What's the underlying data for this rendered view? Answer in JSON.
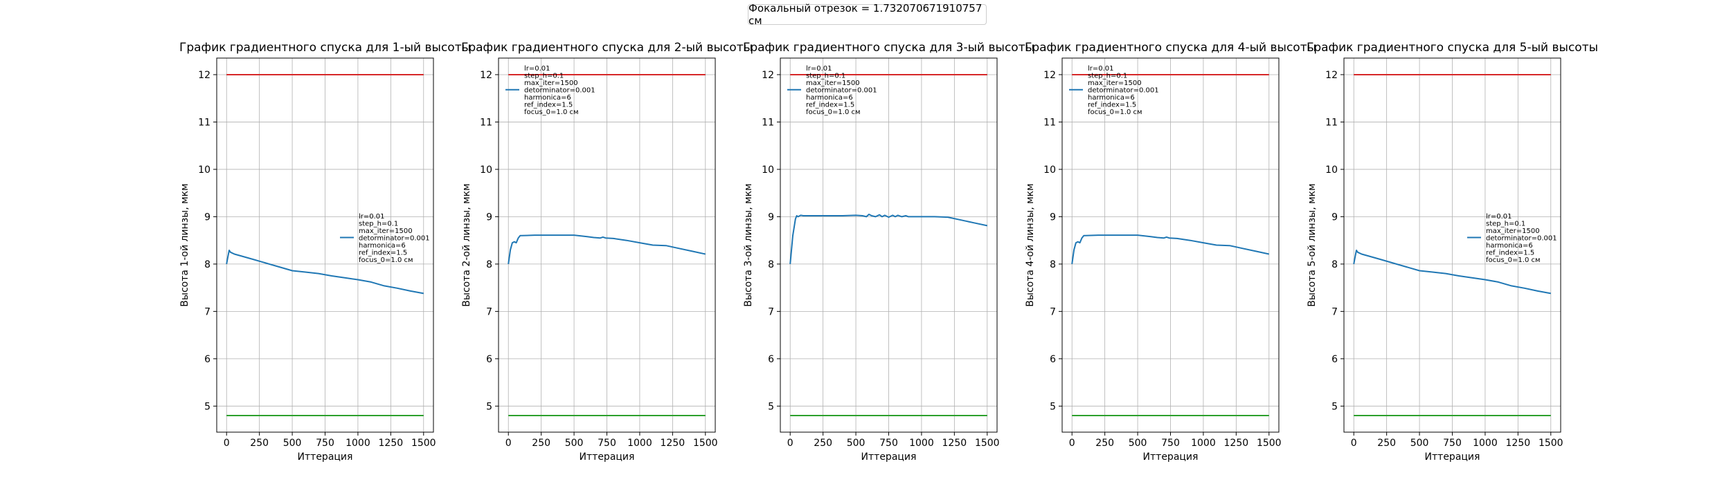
{
  "figure": {
    "suptitle": "Фокальный отрезок = 1.732070671910757 см"
  },
  "chart_data": [
    {
      "type": "line",
      "title": "График градиентного спуска для 1-ый высоты",
      "xlabel": "Иттерация",
      "ylabel": "Высота 1-ой линзы, мкм",
      "xlim": [
        -75,
        1575
      ],
      "ylim": [
        4.45,
        12.35
      ],
      "xticks": [
        0,
        250,
        500,
        750,
        1000,
        1250,
        1500
      ],
      "yticks": [
        5,
        6,
        7,
        8,
        9,
        10,
        11,
        12
      ],
      "grid": true,
      "legend_loc": "center-right",
      "legend_lines": [
        "lr=0.01",
        "step_h=0.1",
        "max_iter=1500",
        "detorminator=0.001",
        "harmonica=6",
        "ref_index=1.5",
        "focus_0=1.0 см"
      ],
      "series": [
        {
          "color": "#1f77b4",
          "x": [
            0,
            10,
            20,
            30,
            60,
            100,
            200,
            300,
            400,
            500,
            600,
            700,
            800,
            900,
            1000,
            1100,
            1200,
            1300,
            1400,
            1500
          ],
          "y": [
            8.0,
            8.15,
            8.29,
            8.25,
            8.21,
            8.18,
            8.1,
            8.02,
            7.94,
            7.86,
            7.83,
            7.8,
            7.75,
            7.71,
            7.67,
            7.62,
            7.54,
            7.49,
            7.43,
            7.38
          ]
        },
        {
          "color": "#d62728",
          "x": [
            0,
            1500
          ],
          "y": [
            12.0,
            12.0
          ]
        },
        {
          "color": "#2ca02c",
          "x": [
            0,
            1500
          ],
          "y": [
            4.8,
            4.8
          ]
        }
      ]
    },
    {
      "type": "line",
      "title": "График градиентного спуска для 2-ый высоты",
      "xlabel": "Иттерация",
      "ylabel": "Высота 2-ой линзы, мкм",
      "xlim": [
        -75,
        1575
      ],
      "ylim": [
        4.45,
        12.35
      ],
      "xticks": [
        0,
        250,
        500,
        750,
        1000,
        1250,
        1500
      ],
      "yticks": [
        5,
        6,
        7,
        8,
        9,
        10,
        11,
        12
      ],
      "grid": true,
      "legend_loc": "upper-left",
      "legend_lines": [
        "lr=0.01",
        "step_h=0.1",
        "max_iter=1500",
        "detorminator=0.001",
        "harmonica=6",
        "ref_index=1.5",
        "focus_0=1.0 см"
      ],
      "series": [
        {
          "color": "#1f77b4",
          "x": [
            0,
            15,
            30,
            45,
            60,
            75,
            90,
            100,
            200,
            300,
            400,
            500,
            600,
            650,
            700,
            720,
            740,
            800,
            900,
            1000,
            1100,
            1200,
            1300,
            1400,
            1500
          ],
          "y": [
            8.0,
            8.3,
            8.45,
            8.47,
            8.45,
            8.55,
            8.6,
            8.6,
            8.61,
            8.61,
            8.61,
            8.61,
            8.58,
            8.56,
            8.55,
            8.57,
            8.55,
            8.54,
            8.5,
            8.45,
            8.4,
            8.39,
            8.33,
            8.27,
            8.21
          ]
        },
        {
          "color": "#d62728",
          "x": [
            0,
            1500
          ],
          "y": [
            12.0,
            12.0
          ]
        },
        {
          "color": "#2ca02c",
          "x": [
            0,
            1500
          ],
          "y": [
            4.8,
            4.8
          ]
        }
      ]
    },
    {
      "type": "line",
      "title": "График градиентного спуска для 3-ый высоты",
      "xlabel": "Иттерация",
      "ylabel": "Высота 3-ой линзы, мкм",
      "xlim": [
        -75,
        1575
      ],
      "ylim": [
        4.45,
        12.35
      ],
      "xticks": [
        0,
        250,
        500,
        750,
        1000,
        1250,
        1500
      ],
      "yticks": [
        5,
        6,
        7,
        8,
        9,
        10,
        11,
        12
      ],
      "grid": true,
      "legend_loc": "upper-left",
      "legend_lines": [
        "lr=0.01",
        "step_h=0.1",
        "max_iter=1500",
        "detorminator=0.001",
        "harmonica=6",
        "ref_index=1.5",
        "focus_0=1.0 см"
      ],
      "series": [
        {
          "color": "#1f77b4",
          "x": [
            0,
            20,
            40,
            50,
            60,
            80,
            100,
            200,
            300,
            400,
            500,
            550,
            580,
            600,
            620,
            650,
            680,
            700,
            720,
            750,
            780,
            800,
            820,
            850,
            880,
            900,
            1000,
            1100,
            1200,
            1300,
            1400,
            1500
          ],
          "y": [
            8.0,
            8.6,
            8.95,
            9.02,
            9.0,
            9.03,
            9.02,
            9.02,
            9.02,
            9.02,
            9.03,
            9.02,
            9.0,
            9.05,
            9.02,
            9.0,
            9.04,
            9.0,
            9.03,
            8.99,
            9.03,
            9.0,
            9.03,
            9.0,
            9.02,
            9.0,
            9.0,
            9.0,
            8.99,
            8.93,
            8.87,
            8.81
          ]
        },
        {
          "color": "#d62728",
          "x": [
            0,
            1500
          ],
          "y": [
            12.0,
            12.0
          ]
        },
        {
          "color": "#2ca02c",
          "x": [
            0,
            1500
          ],
          "y": [
            4.8,
            4.8
          ]
        }
      ]
    },
    {
      "type": "line",
      "title": "График градиентного спуска для 4-ый высоты",
      "xlabel": "Иттерация",
      "ylabel": "Высота 4-ой линзы, мкм",
      "xlim": [
        -75,
        1575
      ],
      "ylim": [
        4.45,
        12.35
      ],
      "xticks": [
        0,
        250,
        500,
        750,
        1000,
        1250,
        1500
      ],
      "yticks": [
        5,
        6,
        7,
        8,
        9,
        10,
        11,
        12
      ],
      "grid": true,
      "legend_loc": "upper-left",
      "legend_lines": [
        "lr=0.01",
        "step_h=0.1",
        "max_iter=1500",
        "detorminator=0.001",
        "harmonica=6",
        "ref_index=1.5",
        "focus_0=1.0 см"
      ],
      "series": [
        {
          "color": "#1f77b4",
          "x": [
            0,
            15,
            30,
            45,
            60,
            75,
            90,
            100,
            200,
            300,
            400,
            500,
            600,
            650,
            700,
            720,
            740,
            800,
            900,
            1000,
            1100,
            1200,
            1300,
            1400,
            1500
          ],
          "y": [
            8.0,
            8.3,
            8.45,
            8.47,
            8.45,
            8.55,
            8.6,
            8.6,
            8.61,
            8.61,
            8.61,
            8.61,
            8.58,
            8.56,
            8.55,
            8.57,
            8.55,
            8.54,
            8.5,
            8.45,
            8.4,
            8.39,
            8.33,
            8.27,
            8.21
          ]
        },
        {
          "color": "#d62728",
          "x": [
            0,
            1500
          ],
          "y": [
            12.0,
            12.0
          ]
        },
        {
          "color": "#2ca02c",
          "x": [
            0,
            1500
          ],
          "y": [
            4.8,
            4.8
          ]
        }
      ]
    },
    {
      "type": "line",
      "title": "График градиентного спуска для 5-ый высоты",
      "xlabel": "Иттерация",
      "ylabel": "Высота 5-ой линзы, мкм",
      "xlim": [
        -75,
        1575
      ],
      "ylim": [
        4.45,
        12.35
      ],
      "xticks": [
        0,
        250,
        500,
        750,
        1000,
        1250,
        1500
      ],
      "yticks": [
        5,
        6,
        7,
        8,
        9,
        10,
        11,
        12
      ],
      "grid": true,
      "legend_loc": "center-right",
      "legend_lines": [
        "lr=0.01",
        "step_h=0.1",
        "max_iter=1500",
        "detorminator=0.001",
        "harmonica=6",
        "ref_index=1.5",
        "focus_0=1.0 см"
      ],
      "series": [
        {
          "color": "#1f77b4",
          "x": [
            0,
            10,
            20,
            30,
            60,
            100,
            200,
            300,
            400,
            500,
            600,
            700,
            800,
            900,
            1000,
            1100,
            1200,
            1300,
            1400,
            1500
          ],
          "y": [
            8.0,
            8.15,
            8.29,
            8.25,
            8.21,
            8.18,
            8.1,
            8.02,
            7.94,
            7.86,
            7.83,
            7.8,
            7.75,
            7.71,
            7.67,
            7.62,
            7.54,
            7.49,
            7.43,
            7.38
          ]
        },
        {
          "color": "#d62728",
          "x": [
            0,
            1500
          ],
          "y": [
            12.0,
            12.0
          ]
        },
        {
          "color": "#2ca02c",
          "x": [
            0,
            1500
          ],
          "y": [
            4.8,
            4.8
          ]
        }
      ]
    }
  ]
}
